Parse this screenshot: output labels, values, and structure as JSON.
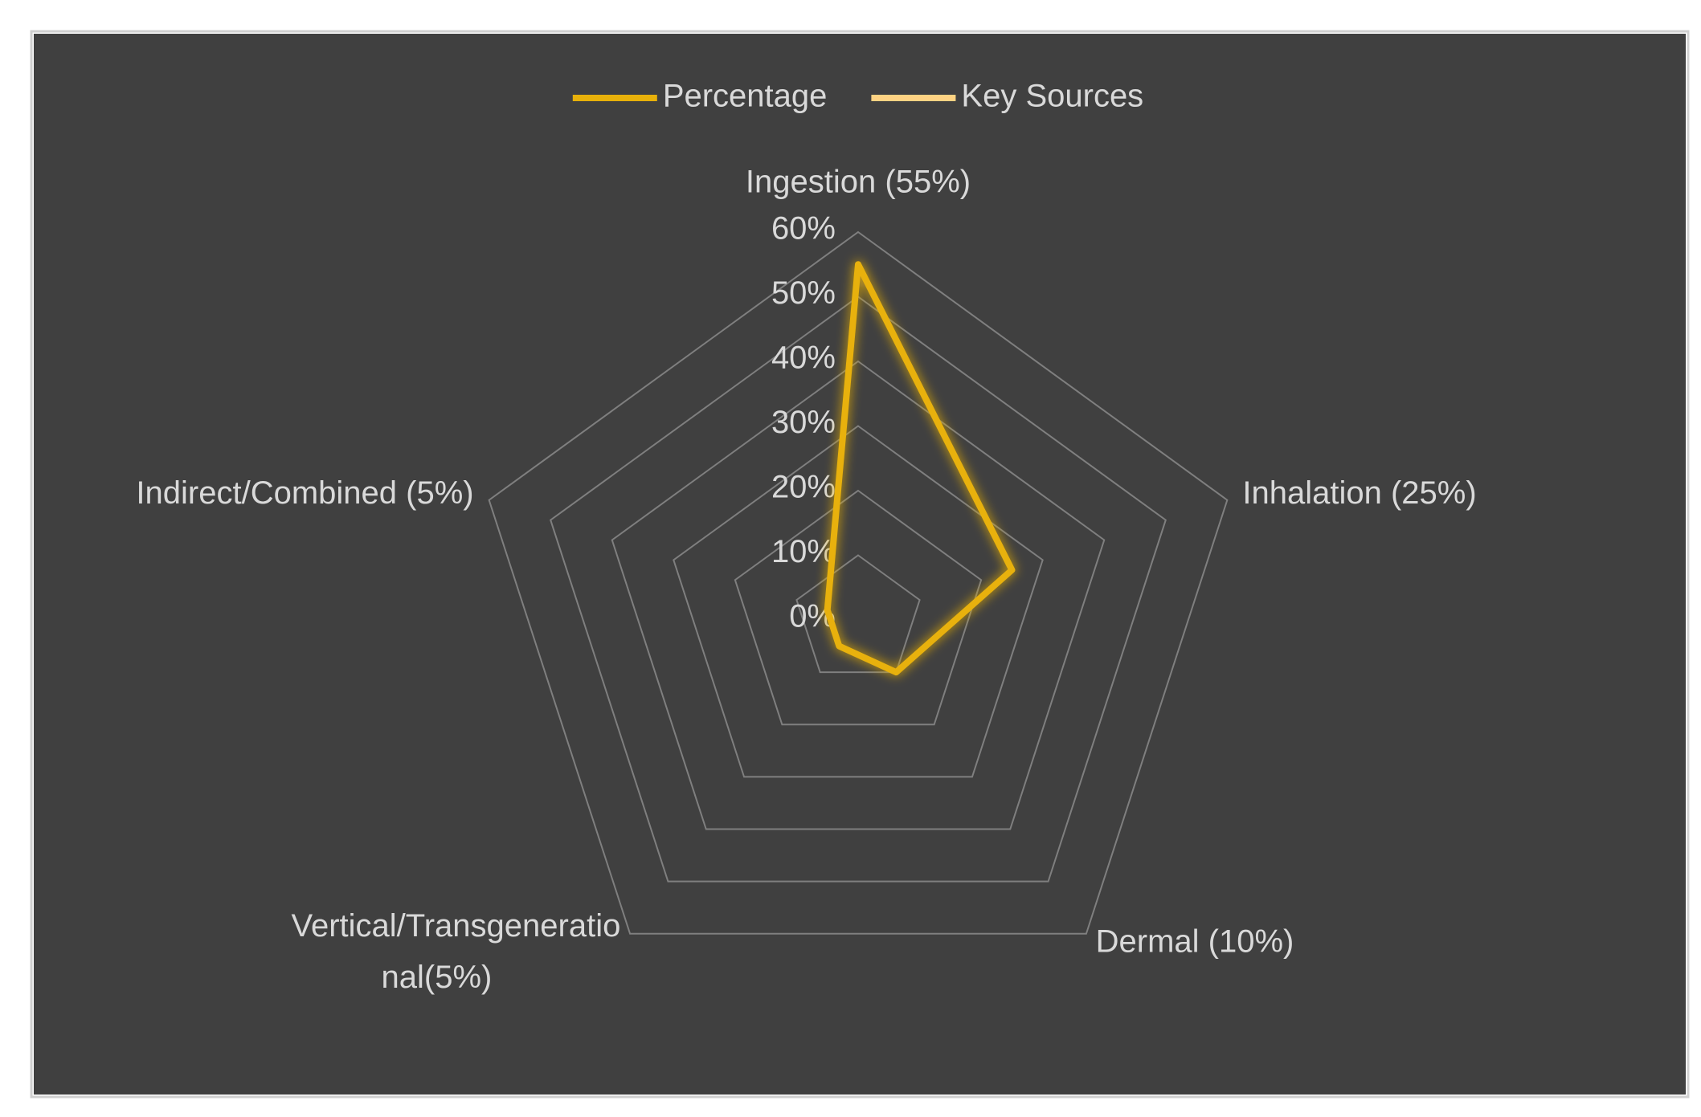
{
  "chart_data": {
    "type": "radar",
    "categories": [
      "Ingestion (55%)",
      "Inhalation (25%)",
      "Dermal (10%)",
      "Vertical/Transgenerational(5%)",
      "Indirect/Combined (5%)"
    ],
    "series": [
      {
        "name": "Percentage",
        "color": "#e8b10a",
        "values": [
          55,
          25,
          10,
          5,
          5
        ]
      },
      {
        "name": "Key Sources",
        "color": "#ffd383",
        "values": [
          null,
          null,
          null,
          null,
          null
        ]
      }
    ],
    "rlim": [
      0,
      60
    ],
    "rticks": [
      {
        "value": 0,
        "label": "0%"
      },
      {
        "value": 10,
        "label": "10%"
      },
      {
        "value": 20,
        "label": "20%"
      },
      {
        "value": 30,
        "label": "30%"
      },
      {
        "value": 40,
        "label": "40%"
      },
      {
        "value": 50,
        "label": "50%"
      },
      {
        "value": 60,
        "label": "60%"
      }
    ],
    "grid": true,
    "legend": "top"
  }
}
